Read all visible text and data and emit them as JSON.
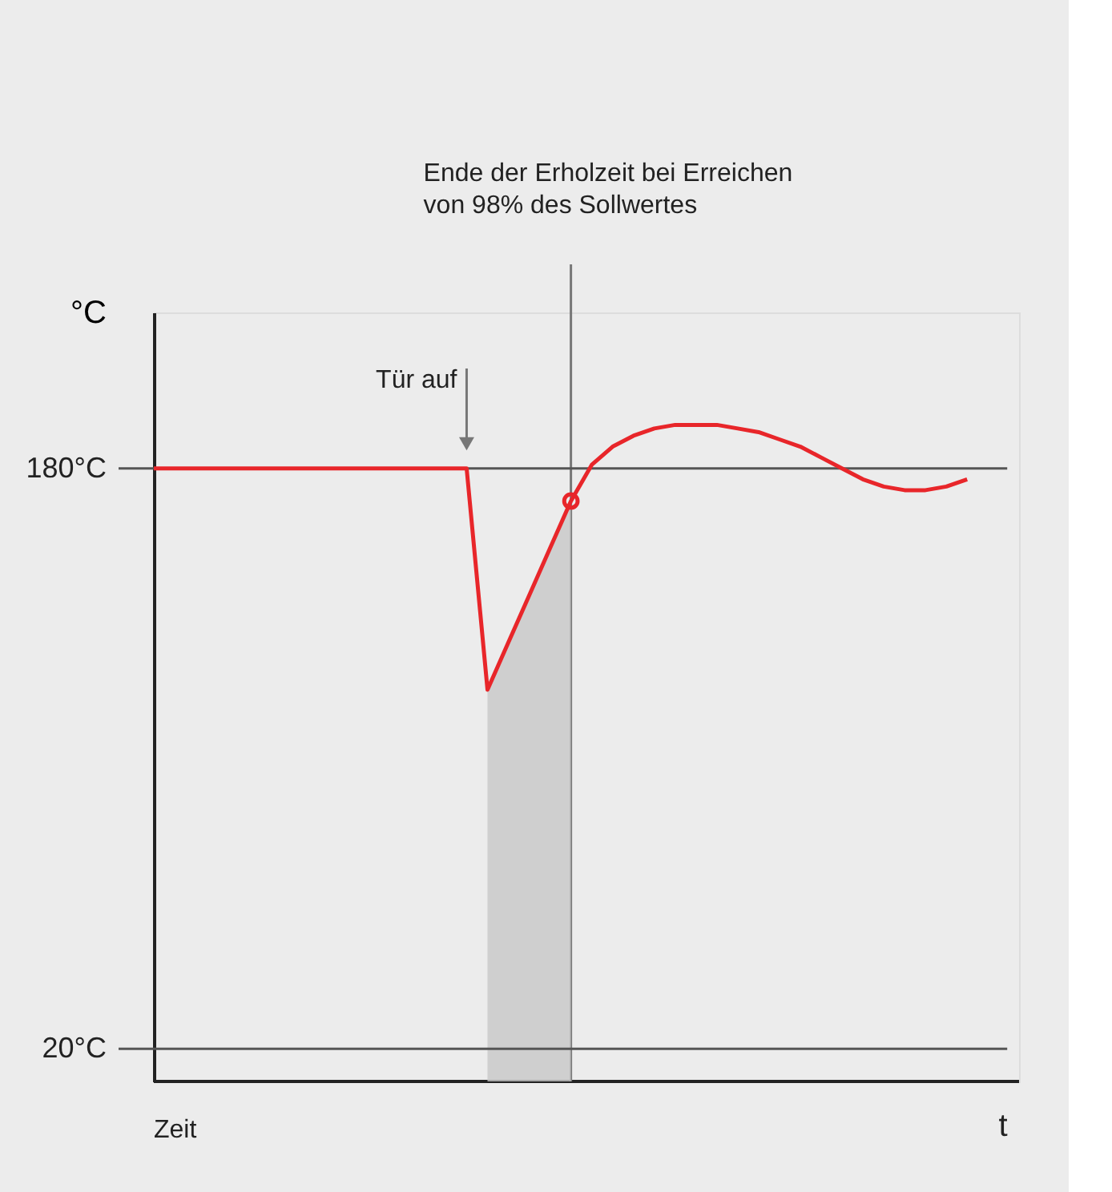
{
  "chart_data": {
    "type": "line",
    "xlabel": "t",
    "ylabel": "°C",
    "categories": [
      null,
      null,
      null,
      null,
      null,
      null,
      null,
      null,
      null,
      null,
      null,
      null,
      null,
      null,
      null,
      null,
      null,
      null,
      null,
      null,
      null,
      null,
      null,
      null,
      null,
      null,
      null,
      null,
      null,
      null,
      null,
      null,
      null,
      null,
      null,
      null,
      null,
      null,
      null,
      null
    ],
    "ylim": [
      11,
      223
    ],
    "yticks": [
      {
        "value": 20,
        "label": "20°C"
      },
      {
        "value": 180,
        "label": "180°C"
      }
    ],
    "tick_labels": "y",
    "grid": false,
    "series": [
      {
        "color": "#e8262a",
        "line_style": "solid",
        "marker": "none",
        "values": [
          180,
          180,
          180,
          180,
          180,
          180,
          180,
          180,
          180,
          180,
          180,
          180,
          180,
          180,
          180,
          180,
          119,
          132,
          145,
          158,
          171,
          181,
          186,
          189,
          191,
          192,
          192,
          192,
          191,
          190,
          188,
          186,
          183,
          180,
          177,
          175,
          174,
          174,
          175,
          177
        ]
      },
      {
        "type": "area",
        "color": "#c8c8c8",
        "values": [
          null,
          null,
          null,
          null,
          null,
          null,
          null,
          null,
          null,
          null,
          null,
          null,
          null,
          null,
          null,
          null,
          119,
          132,
          145,
          158,
          171,
          null,
          null,
          null,
          null,
          null,
          null,
          null,
          null,
          null,
          null,
          null,
          null,
          null,
          null,
          null,
          null,
          null,
          null,
          null
        ]
      },
      {
        "type": "scatter",
        "color": "#e8262a",
        "marker": "circle",
        "values": [
          null,
          null,
          null,
          null,
          null,
          null,
          null,
          null,
          null,
          null,
          null,
          null,
          null,
          null,
          null,
          null,
          null,
          null,
          null,
          null,
          171,
          null,
          null,
          null,
          null,
          null,
          null,
          null,
          null,
          null,
          null,
          null,
          null,
          null,
          null,
          null,
          null,
          null,
          null,
          null
        ]
      }
    ],
    "ref_lines": [
      {
        "axis": "y",
        "value": 180,
        "color": "#555555"
      },
      {
        "axis": "y",
        "value": 20,
        "color": "#555555"
      }
    ],
    "annotations": [
      "Tür auf",
      "Ende der Erholzeit bei Erreichen\nvon 98% des Sollwertes",
      "Zeit"
    ]
  }
}
